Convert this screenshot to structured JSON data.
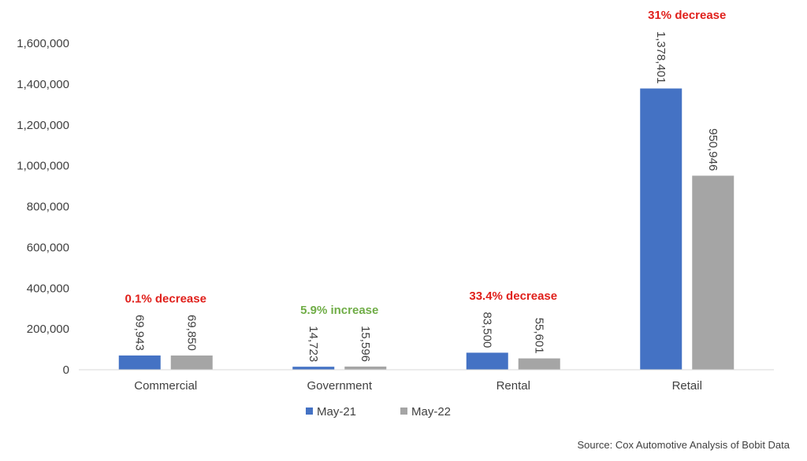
{
  "chart_data": {
    "type": "bar",
    "categories": [
      "Commercial",
      "Government",
      "Rental",
      "Retail"
    ],
    "series": [
      {
        "name": "May-21",
        "color": "#4472C4",
        "values": [
          69943,
          14723,
          83500,
          1378401
        ]
      },
      {
        "name": "May-22",
        "color": "#A5A5A5",
        "values": [
          69850,
          15596,
          55601,
          950946
        ]
      }
    ],
    "data_labels": [
      [
        "69,943",
        "14,723",
        "83,500",
        "1,378,401"
      ],
      [
        "69,850",
        "15,596",
        "55,601",
        "950,946"
      ]
    ],
    "annotations": [
      {
        "category": "Commercial",
        "text": "0.1% decrease",
        "color": "#E0201B"
      },
      {
        "category": "Government",
        "text": "5.9% increase",
        "color": "#70AD47"
      },
      {
        "category": "Rental",
        "text": "33.4% decrease",
        "color": "#E0201B"
      },
      {
        "category": "Retail",
        "text": "31% decrease",
        "color": "#E0201B"
      }
    ],
    "ylim": [
      0,
      1600000
    ],
    "yticks": [
      "0",
      "200,000",
      "400,000",
      "600,000",
      "800,000",
      "1,000,000",
      "1,200,000",
      "1,400,000",
      "1,600,000"
    ],
    "ytick_values": [
      0,
      200000,
      400000,
      600000,
      800000,
      1000000,
      1200000,
      1400000,
      1600000
    ],
    "grid": false,
    "legend_position": "bottom"
  },
  "source": "Source: Cox Automotive Analysis of Bobit Data"
}
